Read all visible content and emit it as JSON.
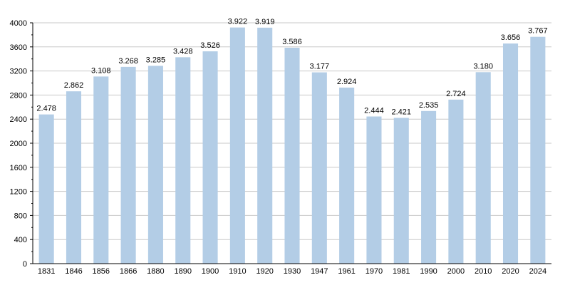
{
  "chart_data": {
    "type": "bar",
    "title": "",
    "xlabel": "",
    "ylabel": "",
    "categories": [
      "1831",
      "1846",
      "1856",
      "1866",
      "1880",
      "1890",
      "1900",
      "1910",
      "1920",
      "1930",
      "1947",
      "1961",
      "1970",
      "1981",
      "1990",
      "2000",
      "2010",
      "2020",
      "2024"
    ],
    "values": [
      2478,
      2862,
      3108,
      3268,
      3285,
      3428,
      3526,
      3922,
      3919,
      3586,
      3177,
      2924,
      2444,
      2421,
      2535,
      2724,
      3180,
      3656,
      3767
    ],
    "data_labels": [
      "2.478",
      "2.862",
      "3.108",
      "3.268",
      "3.285",
      "3.428",
      "3.526",
      "3.922",
      "3.919",
      "3.586",
      "3.177",
      "2.924",
      "2.444",
      "2.421",
      "2.535",
      "2.724",
      "3.180",
      "3.656",
      "3.767"
    ],
    "ylim": [
      0,
      4000
    ],
    "yticks": [
      0,
      400,
      800,
      1200,
      1600,
      2000,
      2400,
      2800,
      3200,
      3600,
      4000
    ],
    "grid": true,
    "legend": "none",
    "colors": {
      "bar": "#b3cde6",
      "grid": "#c8c8c8",
      "axis": "#000000"
    }
  }
}
